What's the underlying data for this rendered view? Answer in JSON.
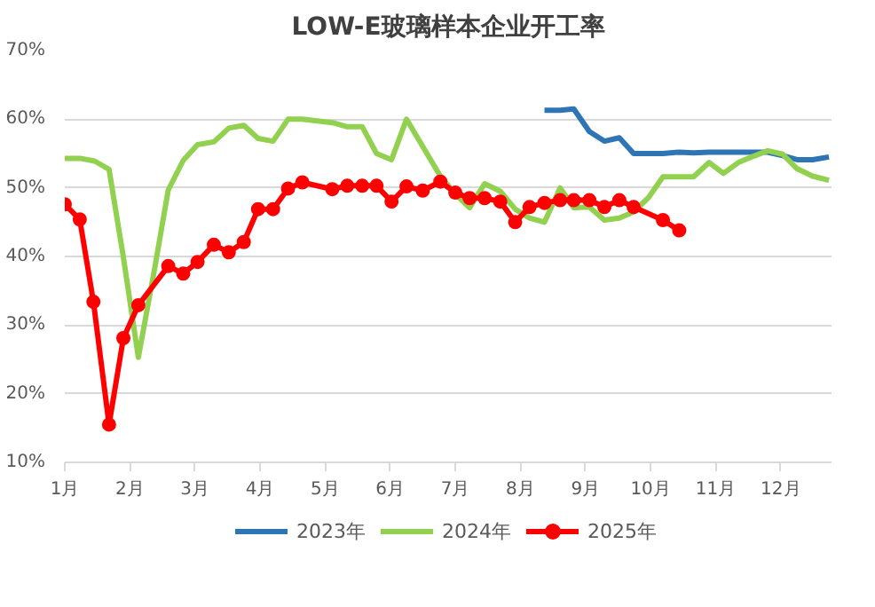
{
  "chart_data": {
    "type": "line",
    "title": "LOW-E玻璃样本企业开工率",
    "xlim": [
      1,
      12.78
    ],
    "xticks": [
      {
        "value": 1,
        "label": "1月"
      },
      {
        "value": 2,
        "label": "2月"
      },
      {
        "value": 3,
        "label": "3月"
      },
      {
        "value": 4,
        "label": "4月"
      },
      {
        "value": 5,
        "label": "5月"
      },
      {
        "value": 6,
        "label": "6月"
      },
      {
        "value": 7,
        "label": "7月"
      },
      {
        "value": 8,
        "label": "8月"
      },
      {
        "value": 9,
        "label": "9月"
      },
      {
        "value": 10,
        "label": "10月"
      },
      {
        "value": 11,
        "label": "11月"
      },
      {
        "value": 12,
        "label": "12月"
      }
    ],
    "ylim": [
      10,
      70
    ],
    "yticks": [
      {
        "value": 10,
        "label": "10%"
      },
      {
        "value": 20,
        "label": "20%"
      },
      {
        "value": 30,
        "label": "30%"
      },
      {
        "value": 40,
        "label": "40%"
      },
      {
        "value": 50,
        "label": "50%"
      },
      {
        "value": 60,
        "label": "60%"
      },
      {
        "value": 70,
        "label": "70%"
      }
    ],
    "grid": "y",
    "legend": "bottom",
    "line_style": "solid",
    "series": [
      {
        "name": "2023年",
        "color": "#2e75b6",
        "marker": "none",
        "x": [
          8.37,
          8.61,
          8.82,
          9.06,
          9.29,
          9.52,
          9.74,
          9.97,
          10.19,
          10.44,
          10.66,
          10.9,
          11.12,
          11.35,
          11.58,
          11.8,
          12.03,
          12.25,
          12.49,
          12.74
        ],
        "values": [
          61.3,
          61.3,
          61.5,
          58.2,
          56.8,
          57.3,
          55.0,
          55.0,
          55.0,
          55.2,
          55.1,
          55.2,
          55.2,
          55.2,
          55.2,
          55.2,
          54.7,
          54.1,
          54.1,
          54.5
        ]
      },
      {
        "name": "2024年",
        "color": "#92d050",
        "marker": "none",
        "x": [
          1.0,
          1.23,
          1.46,
          1.68,
          1.9,
          2.13,
          2.38,
          2.59,
          2.82,
          3.04,
          3.29,
          3.52,
          3.75,
          3.97,
          4.2,
          4.43,
          4.65,
          5.11,
          5.34,
          5.57,
          5.79,
          6.02,
          6.25,
          6.77,
          7.0,
          7.22,
          7.45,
          7.69,
          7.92,
          8.14,
          8.37,
          8.61,
          8.82,
          9.06,
          9.29,
          9.52,
          9.74,
          9.97,
          10.19,
          10.44,
          10.66,
          10.9,
          11.12,
          11.35,
          11.58,
          11.8,
          12.03,
          12.25,
          12.49,
          12.74
        ],
        "values": [
          54.3,
          54.3,
          53.9,
          52.7,
          39.9,
          25.3,
          38.2,
          49.7,
          54.0,
          56.3,
          56.7,
          58.7,
          59.1,
          57.2,
          56.8,
          60.0,
          60.0,
          59.5,
          58.9,
          58.9,
          55.0,
          54.1,
          60.0,
          51.7,
          49.1,
          47.1,
          50.6,
          49.5,
          46.9,
          45.6,
          45.0,
          50.0,
          47.1,
          47.2,
          45.3,
          45.6,
          46.5,
          48.6,
          51.6,
          51.6,
          51.6,
          53.7,
          52.1,
          53.7,
          54.6,
          55.4,
          54.9,
          52.8,
          51.7,
          51.1
        ]
      },
      {
        "name": "2025年",
        "color": "#ff0000",
        "marker": "circle",
        "x": [
          1.0,
          1.23,
          1.44,
          1.68,
          1.9,
          2.13,
          2.59,
          2.82,
          3.04,
          3.29,
          3.52,
          3.75,
          3.97,
          4.2,
          4.43,
          4.65,
          5.11,
          5.34,
          5.57,
          5.79,
          6.02,
          6.25,
          6.5,
          6.77,
          7.0,
          7.22,
          7.45,
          7.69,
          7.92,
          8.14,
          8.37,
          8.61,
          8.82,
          9.06,
          9.29,
          9.52,
          9.74,
          10.19,
          10.44
        ],
        "values": [
          47.6,
          45.4,
          33.4,
          15.5,
          28.1,
          32.9,
          38.6,
          37.5,
          39.2,
          41.7,
          40.6,
          42.1,
          46.9,
          46.9,
          49.9,
          50.8,
          49.8,
          50.3,
          50.3,
          50.3,
          48.0,
          50.2,
          49.6,
          50.9,
          49.3,
          48.5,
          48.5,
          48.0,
          45.0,
          47.2,
          47.8,
          48.2,
          48.2,
          48.2,
          47.2,
          48.2,
          47.2,
          45.3,
          43.8
        ]
      }
    ]
  }
}
